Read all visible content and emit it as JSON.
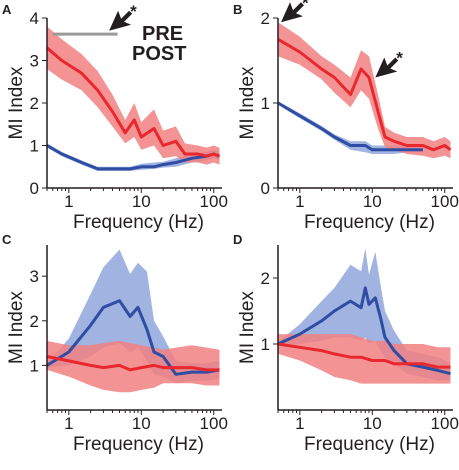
{
  "legend": {
    "pre_label": "PRE",
    "post_label": "POST",
    "pre_color": "#2e4da3",
    "post_color": "#e8282e",
    "pre_band_color": "#8fa6dc",
    "post_band_color": "#f28080"
  },
  "annotations": {
    "star": "*",
    "threshold_color": "#999999"
  },
  "chart_data": [
    {
      "panel": "A",
      "type": "line",
      "xlabel": "Frequency (Hz)",
      "ylabel": "MI Index",
      "xscale": "log",
      "xlim": [
        0.5,
        130
      ],
      "ylim": [
        0,
        4
      ],
      "xticks": [
        1,
        10,
        100
      ],
      "xtick_labels": [
        "1",
        "10",
        "100"
      ],
      "yticks": [
        0,
        1,
        2,
        3,
        4
      ],
      "ytick_labels": [
        "0",
        "1",
        "2",
        "3",
        "4"
      ],
      "threshold_line": {
        "y": 3.62,
        "x_range": [
          0.6,
          4.7
        ]
      },
      "star_markers": [
        {
          "x": 3.6,
          "y": 3.7
        }
      ],
      "series": [
        {
          "name": "PRE",
          "x": [
            0.5,
            0.8,
            1.5,
            2.5,
            4,
            7,
            10,
            15,
            20,
            30,
            50,
            80,
            100,
            120
          ],
          "y": [
            1.0,
            0.8,
            0.6,
            0.45,
            0.45,
            0.45,
            0.5,
            0.5,
            0.55,
            0.6,
            0.7,
            0.75,
            0.8,
            0.75
          ],
          "lower": [
            0.95,
            0.75,
            0.55,
            0.4,
            0.4,
            0.4,
            0.43,
            0.45,
            0.48,
            0.5,
            0.6,
            0.65,
            0.7,
            0.65
          ],
          "upper": [
            1.05,
            0.85,
            0.65,
            0.5,
            0.5,
            0.5,
            0.57,
            0.6,
            0.62,
            0.7,
            0.8,
            0.85,
            0.9,
            0.85
          ]
        },
        {
          "name": "POST",
          "x": [
            0.5,
            0.8,
            1.5,
            2.5,
            4,
            6,
            8,
            10,
            15,
            20,
            30,
            40,
            60,
            80,
            100,
            120
          ],
          "y": [
            3.3,
            3.0,
            2.7,
            2.3,
            1.8,
            1.3,
            1.6,
            1.2,
            1.4,
            1.0,
            1.1,
            0.8,
            0.8,
            0.75,
            0.8,
            0.75
          ],
          "lower": [
            2.8,
            2.55,
            2.3,
            1.9,
            1.45,
            1.05,
            1.2,
            0.9,
            1.0,
            0.7,
            0.75,
            0.6,
            0.6,
            0.55,
            0.6,
            0.55
          ],
          "upper": [
            3.8,
            3.5,
            3.15,
            2.75,
            2.2,
            1.6,
            2.0,
            1.55,
            1.85,
            1.35,
            1.45,
            1.05,
            1.0,
            0.95,
            1.0,
            0.95
          ]
        }
      ]
    },
    {
      "panel": "B",
      "type": "line",
      "xlabel": "Frequency (Hz)",
      "ylabel": "MI Index",
      "xscale": "log",
      "xlim": [
        0.5,
        130
      ],
      "ylim": [
        0,
        2
      ],
      "xticks": [
        1,
        10,
        100
      ],
      "xtick_labels": [
        "1",
        "10",
        "100"
      ],
      "yticks": [
        0,
        1,
        2
      ],
      "ytick_labels": [
        "0",
        "1",
        "2"
      ],
      "star_markers": [
        {
          "x": 0.55,
          "y": 1.95
        },
        {
          "x": 11,
          "y": 1.3
        }
      ],
      "series": [
        {
          "name": "PRE",
          "x": [
            0.5,
            1,
            2,
            3,
            5,
            8,
            10,
            15,
            20,
            30,
            50
          ],
          "y": [
            1.0,
            0.85,
            0.7,
            0.6,
            0.5,
            0.5,
            0.45,
            0.45,
            0.45,
            0.45,
            0.45
          ],
          "lower": [
            0.98,
            0.82,
            0.67,
            0.57,
            0.45,
            0.42,
            0.4,
            0.4,
            0.4,
            0.42,
            0.42
          ],
          "upper": [
            1.02,
            0.88,
            0.73,
            0.63,
            0.55,
            0.55,
            0.5,
            0.5,
            0.5,
            0.5,
            0.5
          ]
        },
        {
          "name": "POST",
          "x": [
            0.5,
            1,
            2,
            3,
            5,
            7,
            9,
            12,
            15,
            20,
            30,
            50,
            70,
            100,
            120
          ],
          "y": [
            1.75,
            1.6,
            1.4,
            1.3,
            1.1,
            1.4,
            1.3,
            0.9,
            0.6,
            0.55,
            0.5,
            0.5,
            0.45,
            0.5,
            0.45
          ],
          "lower": [
            1.55,
            1.45,
            1.28,
            1.12,
            0.95,
            1.15,
            1.05,
            0.7,
            0.48,
            0.45,
            0.4,
            0.38,
            0.35,
            0.38,
            0.35
          ],
          "upper": [
            1.95,
            1.78,
            1.55,
            1.45,
            1.3,
            1.62,
            1.55,
            1.1,
            0.72,
            0.65,
            0.6,
            0.6,
            0.55,
            0.6,
            0.55
          ]
        }
      ]
    },
    {
      "panel": "C",
      "type": "line",
      "xlabel": "Frequency (Hz)",
      "ylabel": "MI Index",
      "xscale": "log",
      "xlim": [
        0.5,
        130
      ],
      "ylim": [
        0,
        3.7
      ],
      "xticks": [
        1,
        10,
        100
      ],
      "xtick_labels": [
        "1",
        "10",
        "100"
      ],
      "yticks": [
        1,
        2,
        3
      ],
      "ytick_labels": [
        "1",
        "2",
        "3"
      ],
      "series": [
        {
          "name": "PRE",
          "x": [
            0.5,
            1,
            2,
            3,
            5,
            7,
            9,
            12,
            15,
            20,
            30,
            50,
            80,
            120
          ],
          "y": [
            1.0,
            1.3,
            1.9,
            2.3,
            2.45,
            2.1,
            2.3,
            1.8,
            1.3,
            1.2,
            0.8,
            0.85,
            0.85,
            0.9
          ],
          "lower": [
            0.95,
            1.0,
            1.2,
            1.4,
            1.5,
            1.3,
            1.4,
            1.1,
            0.8,
            0.75,
            0.6,
            0.65,
            0.65,
            0.7
          ],
          "upper": [
            1.05,
            1.6,
            2.6,
            3.2,
            3.6,
            3.05,
            3.3,
            3.1,
            2.0,
            1.65,
            1.1,
            1.05,
            1.05,
            1.1
          ]
        },
        {
          "name": "POST",
          "x": [
            0.5,
            1,
            2,
            3,
            5,
            7,
            10,
            15,
            20,
            30,
            50,
            80,
            120
          ],
          "y": [
            1.2,
            1.1,
            1.0,
            0.95,
            1.0,
            0.9,
            0.95,
            1.0,
            0.95,
            0.95,
            0.95,
            0.9,
            0.9
          ],
          "lower": [
            0.9,
            0.75,
            0.55,
            0.45,
            0.4,
            0.4,
            0.45,
            0.5,
            0.6,
            0.6,
            0.6,
            0.55,
            0.55
          ],
          "upper": [
            1.55,
            1.45,
            1.45,
            1.5,
            1.55,
            1.5,
            1.45,
            1.4,
            1.35,
            1.4,
            1.45,
            1.4,
            1.35
          ]
        }
      ]
    },
    {
      "panel": "D",
      "type": "line",
      "xlabel": "Frequency (Hz)",
      "ylabel": "MI Index",
      "xscale": "log",
      "xlim": [
        0.5,
        130
      ],
      "ylim": [
        0,
        2.5
      ],
      "xticks": [
        1,
        10,
        100
      ],
      "xtick_labels": [
        "1",
        "10",
        "100"
      ],
      "yticks": [
        1,
        2
      ],
      "ytick_labels": [
        "1",
        "2"
      ],
      "series": [
        {
          "name": "PRE",
          "x": [
            0.5,
            1,
            2,
            3,
            5,
            7,
            8,
            9,
            11,
            13,
            15,
            20,
            30,
            50,
            80,
            120
          ],
          "y": [
            1.0,
            1.15,
            1.35,
            1.5,
            1.65,
            1.55,
            1.85,
            1.6,
            1.7,
            1.4,
            1.1,
            0.9,
            0.7,
            0.65,
            0.6,
            0.55
          ],
          "lower": [
            0.97,
            1.0,
            1.05,
            1.1,
            1.1,
            1.05,
            1.1,
            1.0,
            1.05,
            0.9,
            0.8,
            0.7,
            0.55,
            0.5,
            0.45,
            0.45
          ],
          "upper": [
            1.03,
            1.3,
            1.65,
            1.85,
            2.2,
            2.1,
            2.45,
            2.05,
            2.4,
            1.9,
            1.5,
            1.2,
            0.9,
            0.85,
            0.8,
            0.7
          ]
        },
        {
          "name": "POST",
          "x": [
            0.5,
            1,
            2,
            3,
            5,
            7,
            10,
            15,
            20,
            30,
            50,
            80,
            120
          ],
          "y": [
            1.0,
            0.95,
            0.9,
            0.85,
            0.8,
            0.8,
            0.75,
            0.75,
            0.7,
            0.7,
            0.7,
            0.65,
            0.65
          ],
          "lower": [
            0.85,
            0.75,
            0.6,
            0.5,
            0.45,
            0.4,
            0.4,
            0.4,
            0.4,
            0.4,
            0.4,
            0.4,
            0.4
          ],
          "upper": [
            1.15,
            1.15,
            1.15,
            1.15,
            1.15,
            1.1,
            1.05,
            1.05,
            1.0,
            1.0,
            1.0,
            0.95,
            0.95
          ]
        }
      ]
    }
  ]
}
